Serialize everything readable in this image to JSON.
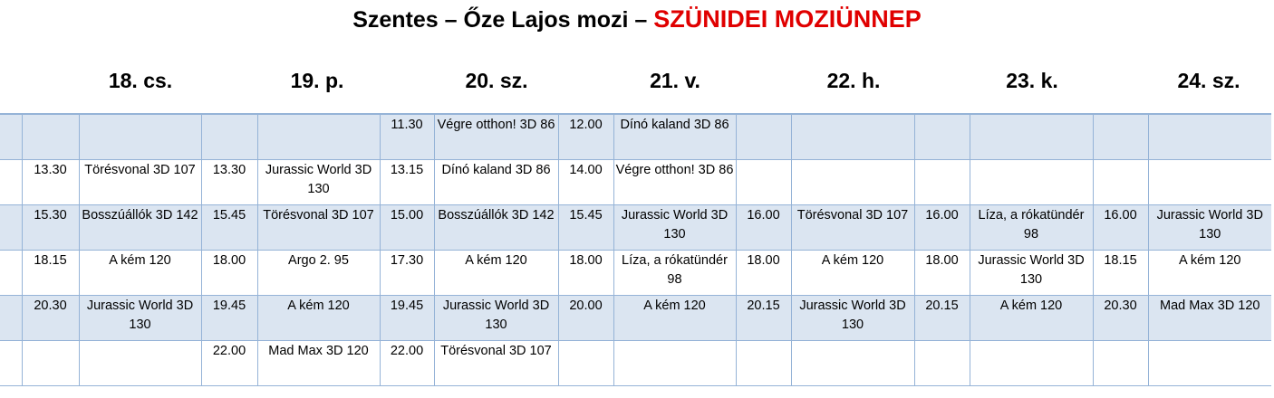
{
  "title": {
    "prefix": "Szentes – Őze Lajos mozi – ",
    "highlight": "SZÜNIDEI MOZIÜNNEP",
    "highlight_color": "#e00000"
  },
  "days": [
    "18. cs.",
    "19. p.",
    "20. sz.",
    "21. v.",
    "22. h.",
    "23. k.",
    "24. sz."
  ],
  "rows": [
    [
      [
        "",
        ""
      ],
      [
        "",
        ""
      ],
      [
        "11.30",
        "Végre otthon! 3D 86"
      ],
      [
        "12.00",
        "Dínó kaland 3D 86"
      ],
      [
        "",
        ""
      ],
      [
        "",
        ""
      ],
      [
        "",
        ""
      ]
    ],
    [
      [
        "13.30",
        "Törésvonal 3D 107"
      ],
      [
        "13.30",
        "Jurassic World 3D  130"
      ],
      [
        "13.15",
        "Dínó kaland 3D 86"
      ],
      [
        "14.00",
        "Végre otthon! 3D 86"
      ],
      [
        "",
        ""
      ],
      [
        "",
        ""
      ],
      [
        "",
        ""
      ]
    ],
    [
      [
        "15.30",
        "Bosszúállók 3D 142"
      ],
      [
        "15.45",
        "Törésvonal 3D 107"
      ],
      [
        "15.00",
        "Bosszúállók 3D 142"
      ],
      [
        "15.45",
        "Jurassic World 3D 130"
      ],
      [
        "16.00",
        "Törésvonal 3D 107"
      ],
      [
        "16.00",
        "Líza, a rókatündér 98"
      ],
      [
        "16.00",
        "Jurassic World 3D 130"
      ]
    ],
    [
      [
        "18.15",
        "A kém 120"
      ],
      [
        "18.00",
        "Argo 2.  95"
      ],
      [
        "17.30",
        "A kém 120"
      ],
      [
        "18.00",
        "Líza, a rókatündér 98"
      ],
      [
        "18.00",
        "A kém 120"
      ],
      [
        "18.00",
        "Jurassic World 3D 130"
      ],
      [
        "18.15",
        "A kém 120"
      ]
    ],
    [
      [
        "20.30",
        "Jurassic World 3D 130"
      ],
      [
        "19.45",
        "A kém 120"
      ],
      [
        "19.45",
        "Jurassic World 3D 130"
      ],
      [
        "20.00",
        "A kém 120"
      ],
      [
        "20.15",
        "Jurassic World 3D 130"
      ],
      [
        "20.15",
        "A kém 120"
      ],
      [
        "20.30",
        "Mad Max 3D 120"
      ]
    ],
    [
      [
        "",
        ""
      ],
      [
        "22.00",
        "Mad Max 3D 120"
      ],
      [
        "22.00",
        "Törésvonal 3D 107"
      ],
      [
        "",
        ""
      ],
      [
        "",
        ""
      ],
      [
        "",
        ""
      ],
      [
        "",
        ""
      ]
    ]
  ]
}
